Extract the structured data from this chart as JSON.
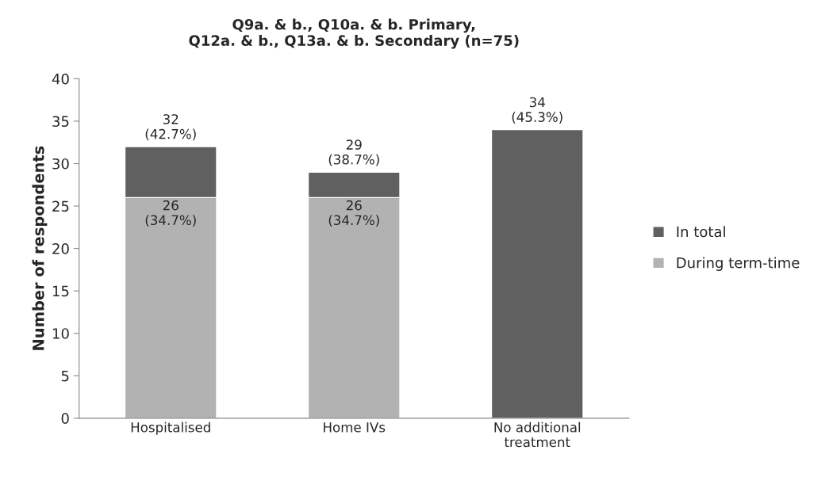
{
  "chart_data": {
    "type": "bar",
    "stacked": true,
    "title": "Q9a. & b., Q10a. & b. Primary,\nQ12a. & b., Q13a. & b. Secondary (n=75)",
    "ylabel": "Number of respondents",
    "categories": [
      "Hospitalised",
      "Home IVs",
      "No additional\ntreatment"
    ],
    "series": [
      {
        "name": "During term-time",
        "color": "#b2b2b2",
        "values": [
          26,
          26,
          null
        ],
        "value_labels": [
          "26\n(34.7%)",
          "26\n(34.7%)",
          null
        ]
      },
      {
        "name": "In total",
        "color": "#606060",
        "values": [
          6,
          3,
          34
        ]
      }
    ],
    "totals": [
      "32\n(42.7%)",
      "29\n(38.7%)",
      "34\n(45.3%)"
    ],
    "ylim": [
      0,
      40
    ],
    "yticks": [
      0,
      5,
      10,
      15,
      20,
      25,
      30,
      35,
      40
    ],
    "grid": false,
    "legend": "right"
  }
}
